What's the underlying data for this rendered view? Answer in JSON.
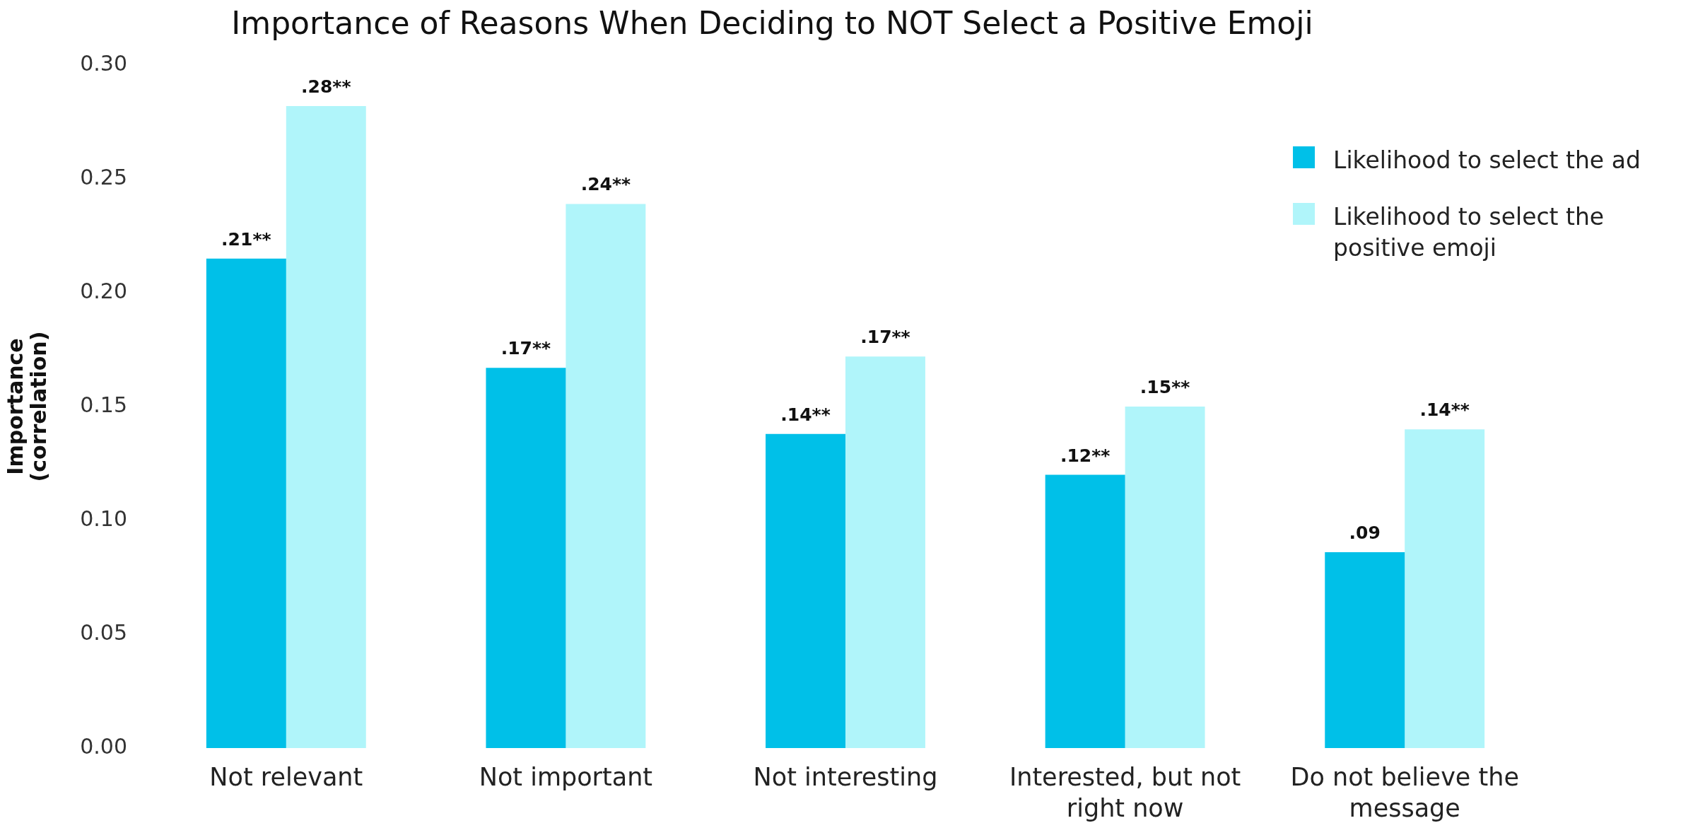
{
  "chart_data": {
    "type": "bar",
    "title": "Importance of Reasons When Deciding to NOT Select a Positive Emoji",
    "ylabel": "Importance (correlation)",
    "categories": [
      "Not relevant",
      "Not important",
      "Not interesting",
      "Interested, but not right now",
      "Do not believe the message"
    ],
    "series": [
      {
        "name": "Likelihood to select the ad",
        "color": "#00c0e8",
        "values": [
          0.215,
          0.167,
          0.138,
          0.12,
          0.086
        ],
        "value_labels": [
          ".21**",
          ".17**",
          ".14**",
          ".12**",
          ".09"
        ]
      },
      {
        "name": "Likelihood to select the positive emoji",
        "color": "#b0f5fa",
        "values": [
          0.282,
          0.239,
          0.172,
          0.15,
          0.14
        ],
        "value_labels": [
          ".28**",
          ".24**",
          ".17**",
          ".15**",
          ".14**"
        ]
      }
    ],
    "ylim": [
      0,
      0.3
    ],
    "yticks": [
      {
        "value": 0,
        "label": "0.00"
      },
      {
        "value": 0.05,
        "label": "0.05"
      },
      {
        "value": 0.1,
        "label": "0.10"
      },
      {
        "value": 0.15,
        "label": "0.15"
      },
      {
        "value": 0.2,
        "label": "0.20"
      },
      {
        "value": 0.25,
        "label": "0.25"
      },
      {
        "value": 0.3,
        "label": "0.30"
      }
    ],
    "legend": "top right"
  }
}
